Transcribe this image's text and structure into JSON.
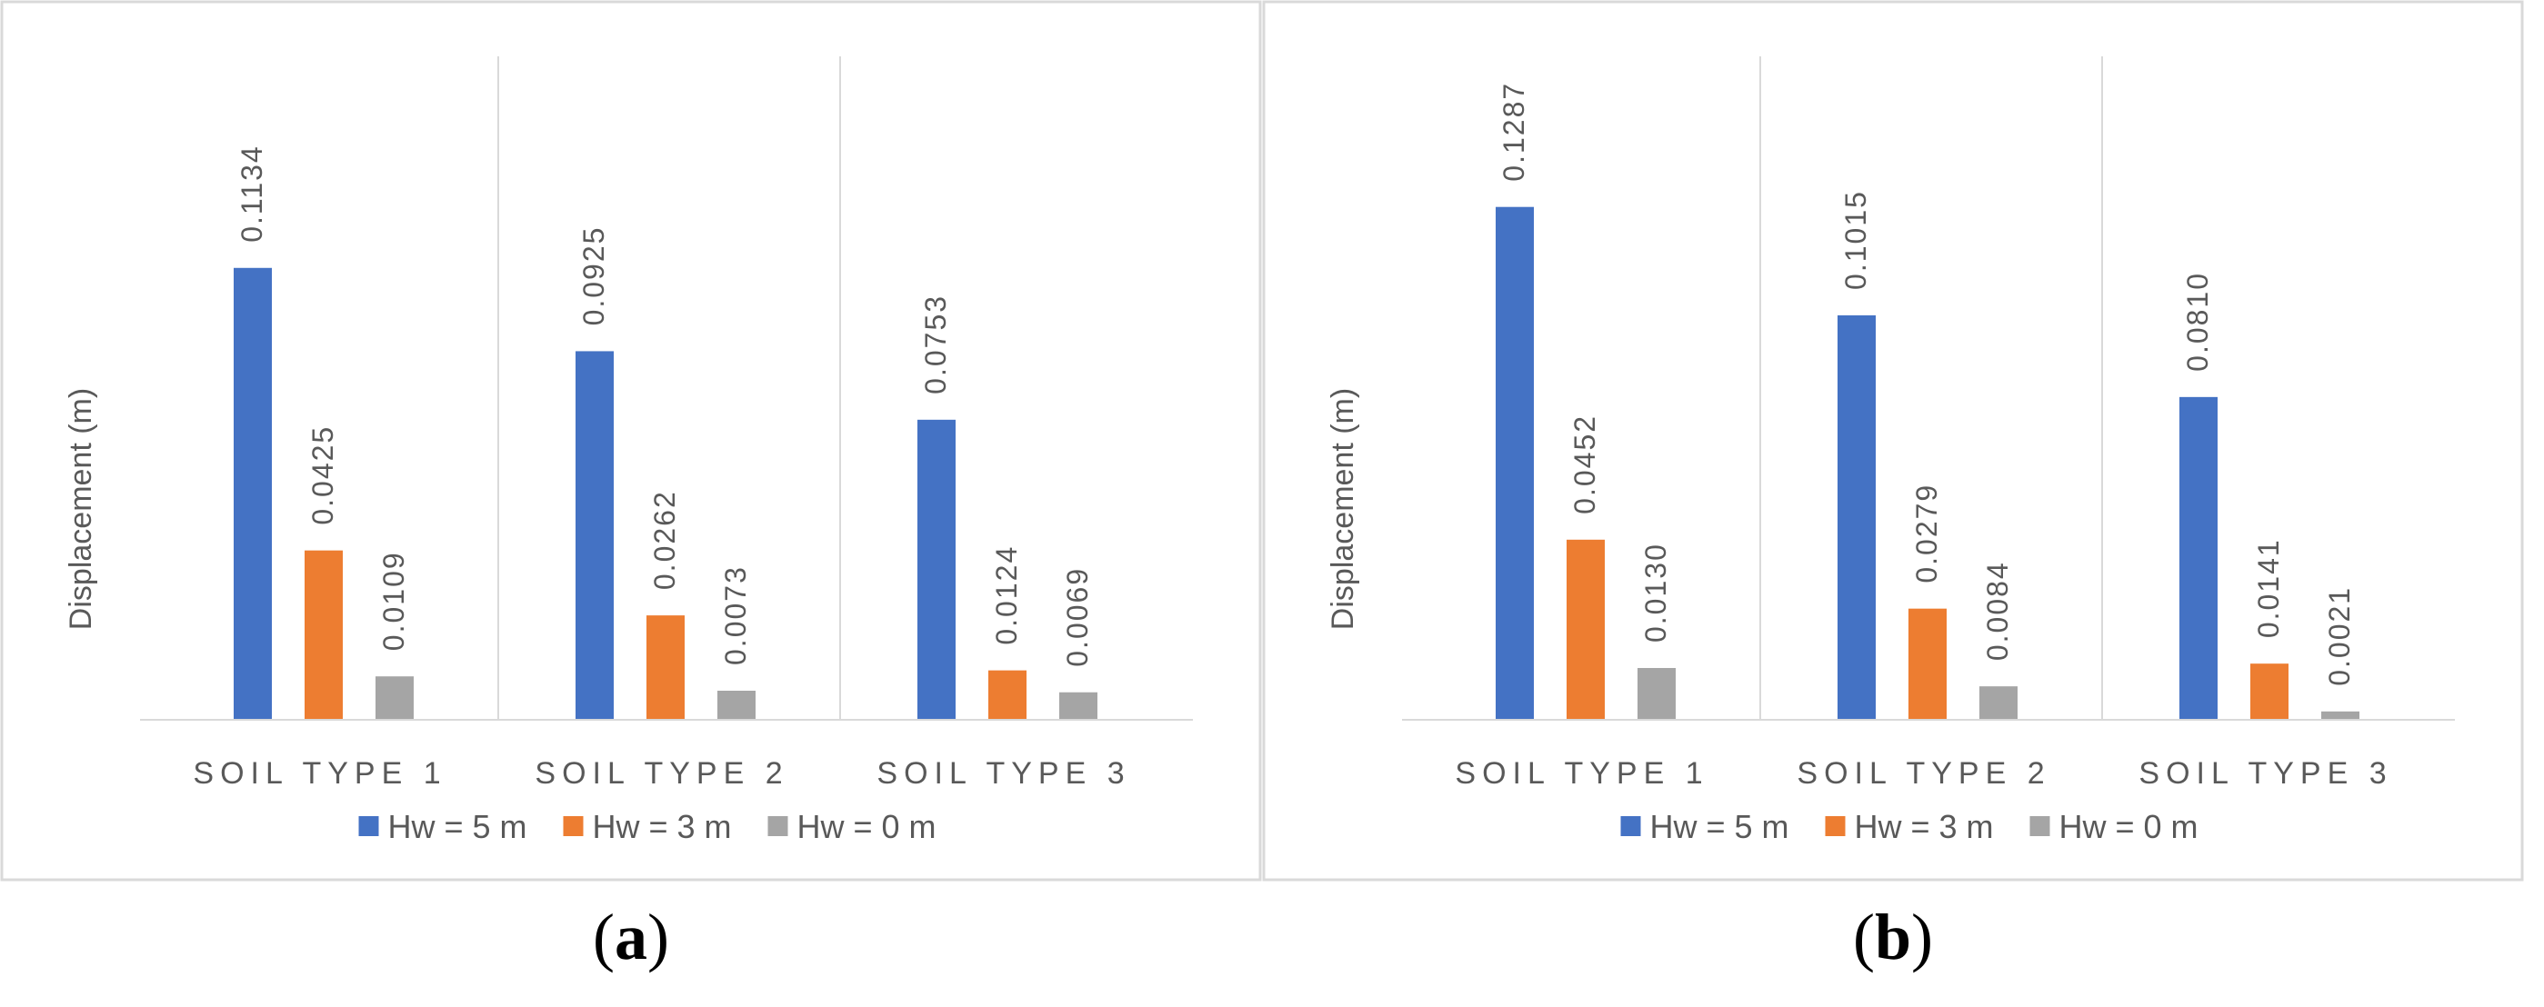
{
  "panels": [
    {
      "caption_letter": "a",
      "chart_data": {
        "type": "bar",
        "ylabel": "Displacement  (m)",
        "categories": [
          "SOIL TYPE 1",
          "SOIL TYPE 2",
          "SOIL TYPE 3"
        ],
        "series": [
          {
            "name": "Hw = 5 m",
            "values": [
              0.1134,
              0.0925,
              0.0753
            ],
            "labels": [
              "0.1134",
              "0.0925",
              "0.0753"
            ],
            "color": "#4472C4"
          },
          {
            "name": "Hw = 3 m",
            "values": [
              0.0425,
              0.0262,
              0.0124
            ],
            "labels": [
              "0.0425",
              "0.0262",
              "0.0124"
            ],
            "color": "#ED7D31"
          },
          {
            "name": "Hw = 0 m",
            "values": [
              0.0109,
              0.0073,
              0.0069
            ],
            "labels": [
              "0.0109",
              "0.0073",
              "0.0069"
            ],
            "color": "#A5A5A5"
          }
        ],
        "ylim": [
          0,
          0.13
        ],
        "grid": false,
        "category_separators": true,
        "legend_position": "bottom",
        "data_labels": "rotated, above bars"
      }
    },
    {
      "caption_letter": "b",
      "chart_data": {
        "type": "bar",
        "ylabel": "Displacement  (m)",
        "categories": [
          "SOIL TYPE 1",
          "SOIL TYPE 2",
          "SOIL TYPE 3"
        ],
        "series": [
          {
            "name": "Hw = 5 m",
            "values": [
              0.1287,
              0.1015,
              0.081
            ],
            "labels": [
              "0.1287",
              "0.1015",
              "0.0810"
            ],
            "color": "#4472C4"
          },
          {
            "name": "Hw = 3 m",
            "values": [
              0.0452,
              0.0279,
              0.0141
            ],
            "labels": [
              "0.0452",
              "0.0279",
              "0.0141"
            ],
            "color": "#ED7D31"
          },
          {
            "name": "Hw = 0 m",
            "values": [
              0.013,
              0.0084,
              0.0021
            ],
            "labels": [
              "0.0130",
              "0.0084",
              "0.0021"
            ],
            "color": "#A5A5A5"
          }
        ],
        "ylim": [
          0,
          0.13
        ],
        "grid": false,
        "category_separators": true,
        "legend_position": "bottom",
        "data_labels": "rotated, above bars"
      }
    }
  ]
}
